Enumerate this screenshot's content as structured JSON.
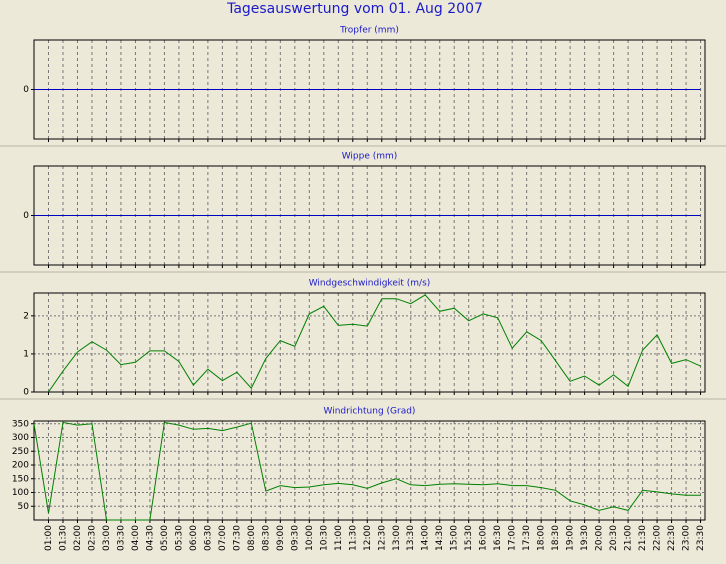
{
  "title": "Tagesauswertung vom 01. Aug 2007",
  "chart_data": [
    {
      "type": "line",
      "title": "Tropfer (mm)",
      "color": "#0000c0",
      "ylim": [
        -1,
        1
      ],
      "yticks": [
        0
      ],
      "ygrid": false,
      "values": [
        0,
        0,
        0,
        0,
        0,
        0,
        0,
        0,
        0,
        0,
        0,
        0,
        0,
        0,
        0,
        0,
        0,
        0,
        0,
        0,
        0,
        0,
        0,
        0,
        0,
        0,
        0,
        0,
        0,
        0,
        0,
        0,
        0,
        0,
        0,
        0,
        0,
        0,
        0,
        0,
        0,
        0,
        0,
        0,
        0,
        0,
        0
      ]
    },
    {
      "type": "line",
      "title": "Wippe (mm)",
      "color": "#0000c0",
      "ylim": [
        -1,
        1
      ],
      "yticks": [
        0
      ],
      "ygrid": false,
      "values": [
        0,
        0,
        0,
        0,
        0,
        0,
        0,
        0,
        0,
        0,
        0,
        0,
        0,
        0,
        0,
        0,
        0,
        0,
        0,
        0,
        0,
        0,
        0,
        0,
        0,
        0,
        0,
        0,
        0,
        0,
        0,
        0,
        0,
        0,
        0,
        0,
        0,
        0,
        0,
        0,
        0,
        0,
        0,
        0,
        0,
        0,
        0
      ]
    },
    {
      "type": "line",
      "title": "Windgeschwindigkeit (m/s)",
      "color": "#008000",
      "ylim": [
        0,
        2.6
      ],
      "yticks": [
        0,
        1,
        2
      ],
      "ygrid": true,
      "values": [
        null,
        0,
        0.55,
        1.05,
        1.32,
        1.1,
        0.72,
        0.78,
        1.08,
        1.08,
        0.8,
        0.18,
        0.6,
        0.3,
        0.52,
        0.1,
        0.88,
        1.35,
        1.2,
        2.05,
        2.25,
        1.75,
        1.78,
        1.73,
        2.45,
        2.45,
        2.32,
        2.55,
        2.12,
        2.2,
        1.87,
        2.05,
        1.95,
        1.15,
        1.58,
        1.35,
        0.82,
        0.28,
        0.42,
        0.18,
        0.45,
        0.15,
        1.1,
        1.5,
        0.75,
        0.85,
        0.68
      ]
    },
    {
      "type": "line",
      "title": "Windrichtung (Grad)",
      "color": "#008000",
      "ylim": [
        0,
        360
      ],
      "yticks": [
        50,
        100,
        150,
        200,
        250,
        300,
        350
      ],
      "ygrid": true,
      "categories": [
        null,
        "01:00",
        "01:30",
        "02:00",
        "02:30",
        "03:00",
        "03:30",
        "04:00",
        "04:30",
        "05:00",
        "05:30",
        "06:00",
        "06:30",
        "07:00",
        "07:30",
        "08:00",
        "08:30",
        "09:00",
        "09:30",
        "10:00",
        "10:30",
        "11:00",
        "11:30",
        "12:00",
        "12:30",
        "13:00",
        "13:30",
        "14:00",
        "14:30",
        "15:00",
        "15:30",
        "16:00",
        "16:30",
        "17:00",
        "17:30",
        "18:00",
        "18:30",
        "19:00",
        "19:30",
        "20:00",
        "20:30",
        "21:00",
        "21:30",
        "22:00",
        "22:30",
        "23:00",
        "23:30"
      ],
      "values": [
        350,
        25,
        355,
        345,
        350,
        0,
        0,
        0,
        0,
        355,
        345,
        330,
        333,
        325,
        338,
        352,
        105,
        125,
        118,
        120,
        128,
        133,
        128,
        115,
        135,
        150,
        128,
        125,
        130,
        132,
        130,
        128,
        132,
        125,
        125,
        118,
        108,
        70,
        55,
        35,
        48,
        35,
        108,
        102,
        95,
        90,
        90
      ]
    }
  ]
}
